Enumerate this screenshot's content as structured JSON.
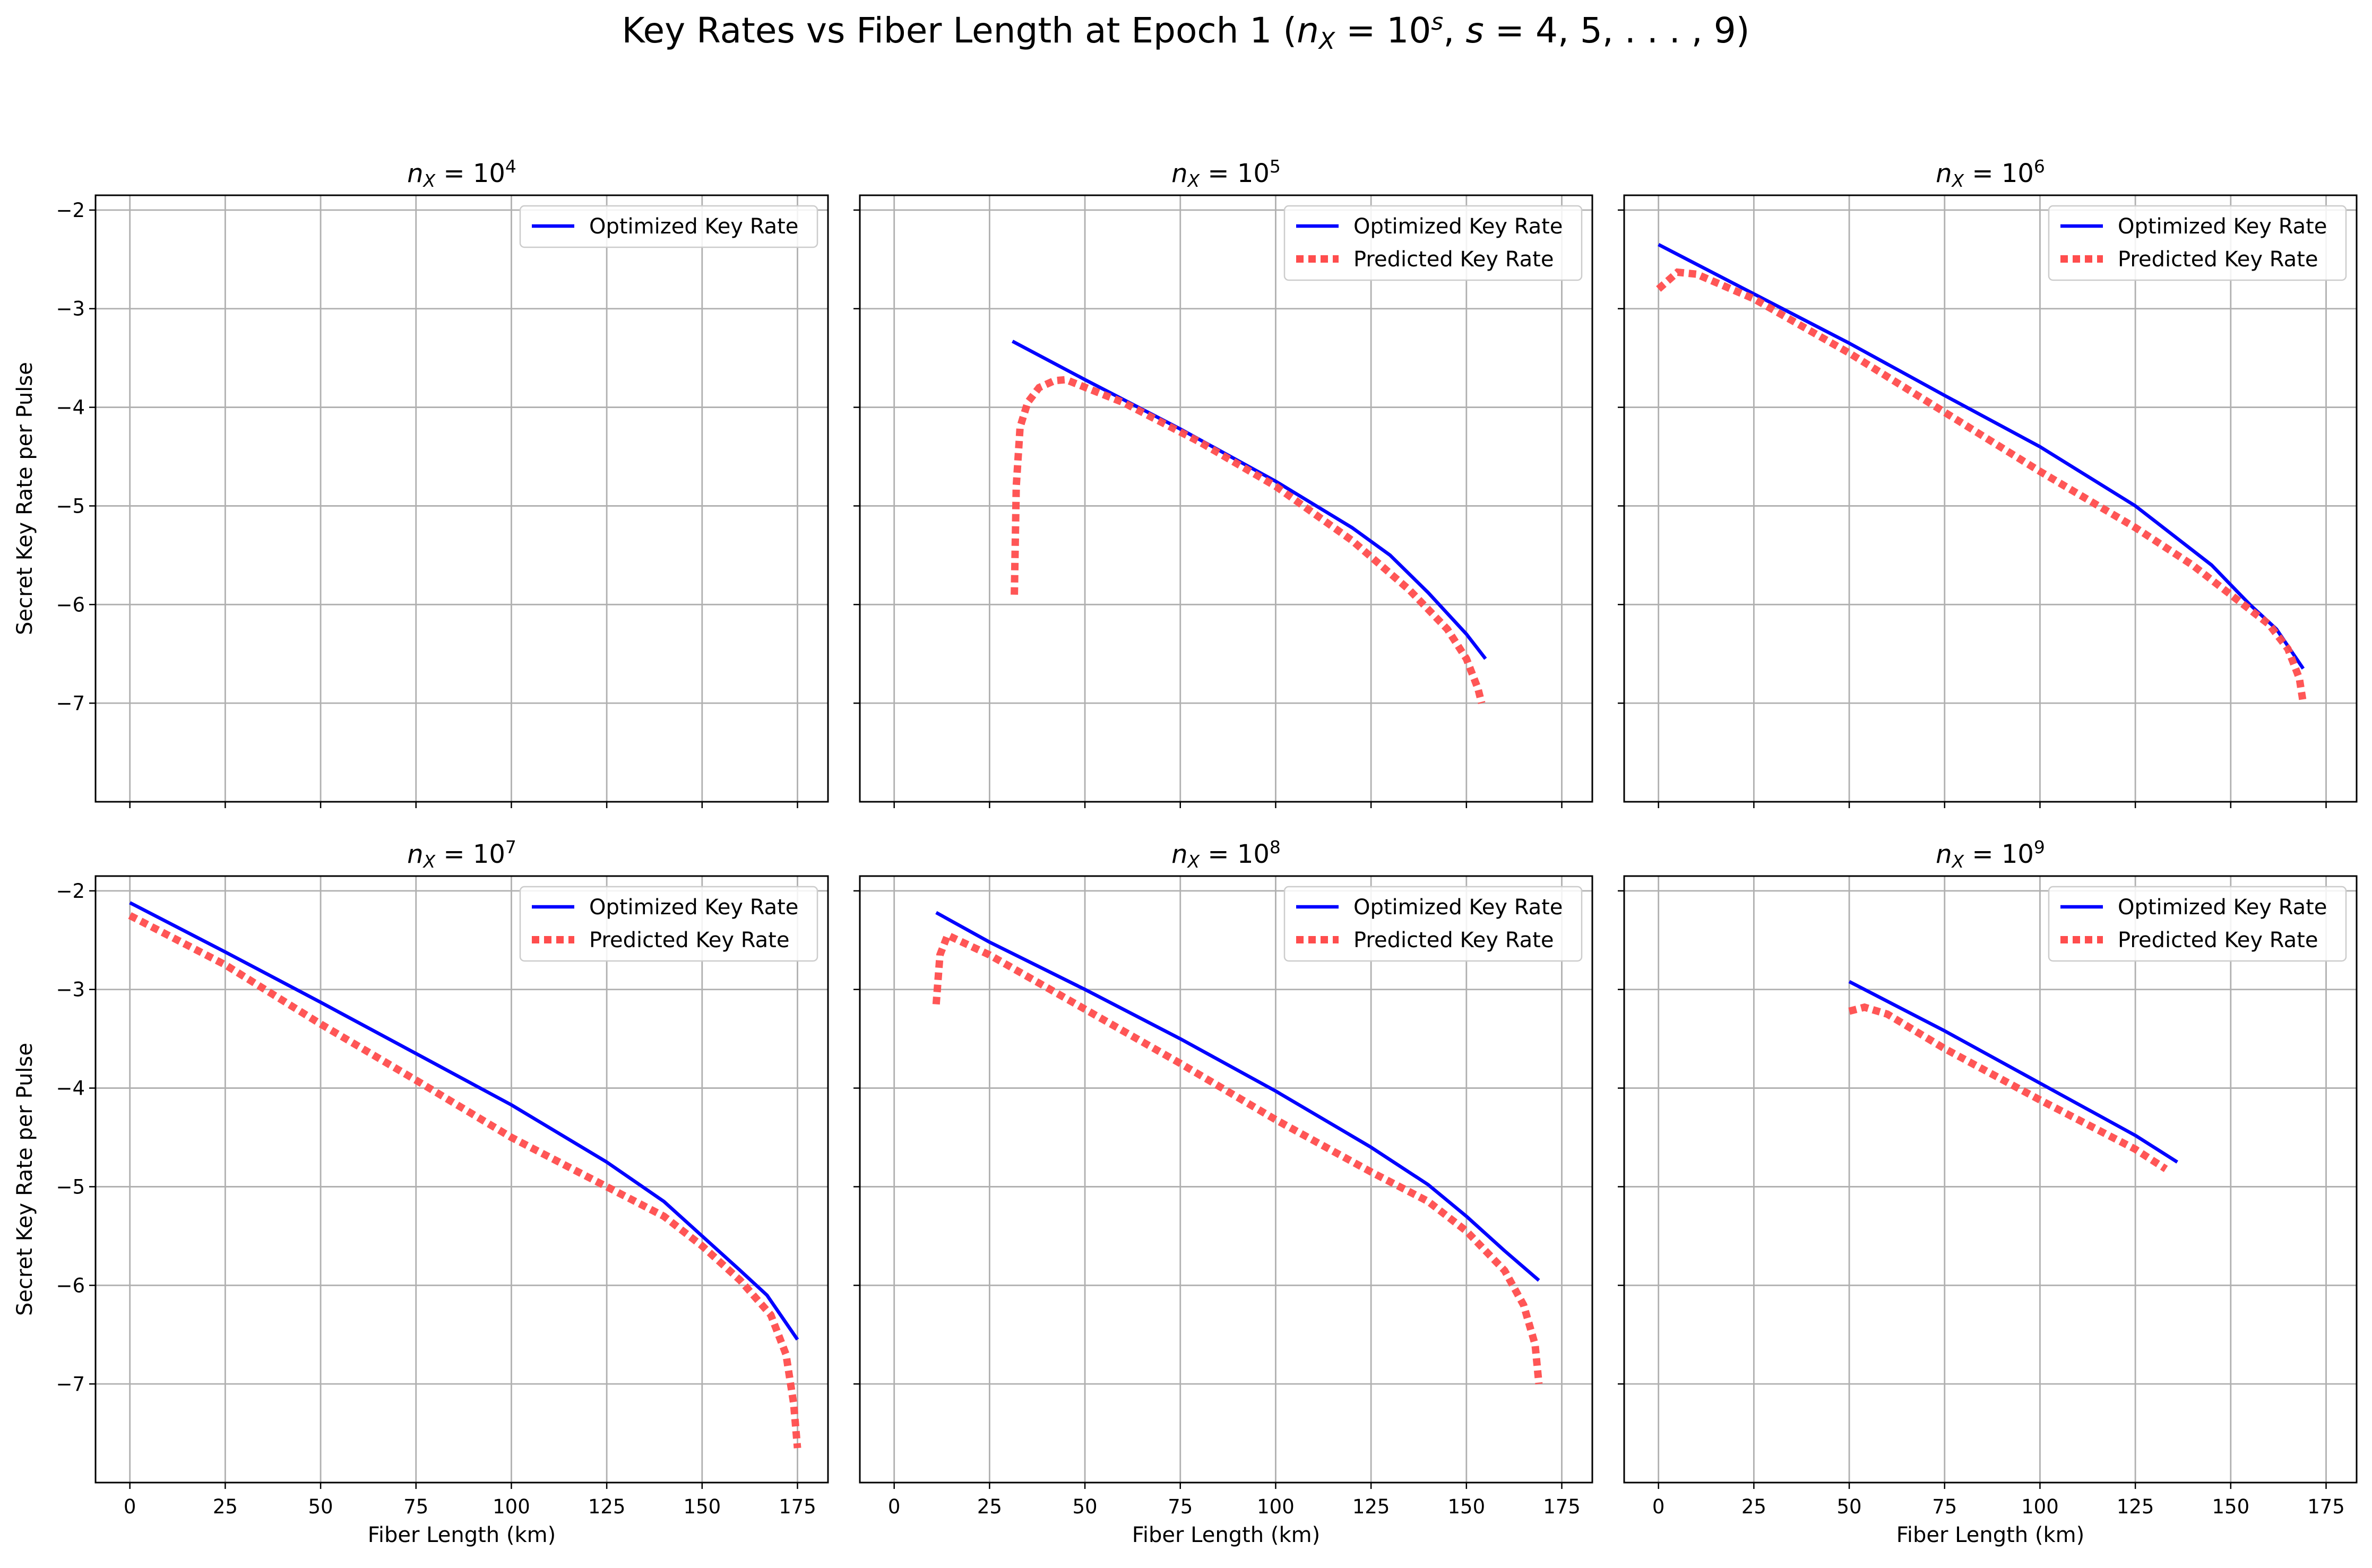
{
  "figure": {
    "title": "Key Rates vs Fiber Length at Epoch 1 (n_X = 10^s, s = 4, 5, . . . , 9)"
  },
  "colors": {
    "optimized": "#0000ff",
    "predicted": "#ff4d4d",
    "grid": "#b0b0b0",
    "frame": "#000000"
  },
  "legend_labels": {
    "optimized": "Optimized Key Rate",
    "predicted": "Predicted Key Rate"
  },
  "chart_data": [
    {
      "type": "line",
      "title": "n_X = 10^4",
      "xlabel": "",
      "ylabel": "Secret Key Rate per Pulse",
      "xlim": [
        -9,
        183
      ],
      "ylim": [
        -8.0,
        -1.85
      ],
      "xticks": [
        0,
        25,
        50,
        75,
        100,
        125,
        150,
        175
      ],
      "yticks": [
        -2,
        -3,
        -4,
        -5,
        -6,
        -7
      ],
      "show_xtick_labels": false,
      "show_ytick_labels": true,
      "grid": true,
      "legend_position": "top-right",
      "series": [
        {
          "name": "Optimized Key Rate",
          "style": "solid",
          "x": [],
          "y": []
        }
      ]
    },
    {
      "type": "line",
      "title": "n_X = 10^5",
      "xlabel": "",
      "ylabel": "",
      "xlim": [
        -9,
        183
      ],
      "ylim": [
        -8.0,
        -1.85
      ],
      "xticks": [
        0,
        25,
        50,
        75,
        100,
        125,
        150,
        175
      ],
      "yticks": [
        -2,
        -3,
        -4,
        -5,
        -6,
        -7
      ],
      "show_xtick_labels": false,
      "show_ytick_labels": false,
      "grid": true,
      "legend_position": "top-right",
      "series": [
        {
          "name": "Optimized Key Rate",
          "style": "solid",
          "x": [
            31,
            50,
            75,
            100,
            120,
            130,
            140,
            150,
            155
          ],
          "y": [
            -3.33,
            -3.72,
            -4.22,
            -4.75,
            -5.22,
            -5.5,
            -5.88,
            -6.3,
            -6.55
          ]
        },
        {
          "name": "Predicted Key Rate",
          "style": "dotted",
          "x": [
            31.5,
            32,
            33,
            35,
            38,
            42,
            45,
            60,
            80,
            100,
            120,
            135,
            145,
            150,
            153,
            154
          ],
          "y": [
            -5.9,
            -4.8,
            -4.2,
            -3.95,
            -3.8,
            -3.73,
            -3.72,
            -3.95,
            -4.35,
            -4.8,
            -5.35,
            -5.85,
            -6.25,
            -6.55,
            -6.85,
            -7.0
          ]
        }
      ]
    },
    {
      "type": "line",
      "title": "n_X = 10^6",
      "xlabel": "",
      "ylabel": "",
      "xlim": [
        -9,
        183
      ],
      "ylim": [
        -8.0,
        -1.85
      ],
      "xticks": [
        0,
        25,
        50,
        75,
        100,
        125,
        150,
        175
      ],
      "yticks": [
        -2,
        -3,
        -4,
        -5,
        -6,
        -7
      ],
      "show_xtick_labels": false,
      "show_ytick_labels": false,
      "grid": true,
      "legend_position": "top-right",
      "series": [
        {
          "name": "Optimized Key Rate",
          "style": "solid",
          "x": [
            0,
            25,
            50,
            75,
            100,
            125,
            145,
            155,
            162,
            169
          ],
          "y": [
            -2.35,
            -2.85,
            -3.35,
            -3.88,
            -4.4,
            -5.0,
            -5.6,
            -6.0,
            -6.25,
            -6.65
          ]
        },
        {
          "name": "Predicted Key Rate",
          "style": "dotted",
          "x": [
            0,
            5,
            10,
            25,
            50,
            75,
            100,
            125,
            140,
            150,
            160,
            165,
            168,
            169
          ],
          "y": [
            -2.8,
            -2.63,
            -2.65,
            -2.9,
            -3.45,
            -4.05,
            -4.65,
            -5.22,
            -5.6,
            -5.9,
            -6.2,
            -6.45,
            -6.75,
            -7.0
          ]
        }
      ]
    },
    {
      "type": "line",
      "title": "n_X = 10^7",
      "xlabel": "Fiber Length (km)",
      "ylabel": "Secret Key Rate per Pulse",
      "xlim": [
        -9,
        183
      ],
      "ylim": [
        -8.0,
        -1.85
      ],
      "xticks": [
        0,
        25,
        50,
        75,
        100,
        125,
        150,
        175
      ],
      "yticks": [
        -2,
        -3,
        -4,
        -5,
        -6,
        -7
      ],
      "show_xtick_labels": true,
      "show_ytick_labels": true,
      "grid": true,
      "legend_position": "top-right",
      "series": [
        {
          "name": "Optimized Key Rate",
          "style": "solid",
          "x": [
            0,
            25,
            50,
            75,
            100,
            125,
            140,
            150,
            160,
            167,
            175
          ],
          "y": [
            -2.12,
            -2.62,
            -3.13,
            -3.65,
            -4.17,
            -4.75,
            -5.15,
            -5.5,
            -5.85,
            -6.1,
            -6.55
          ]
        },
        {
          "name": "Predicted Key Rate",
          "style": "dotted",
          "x": [
            0,
            25,
            50,
            75,
            100,
            125,
            140,
            150,
            160,
            168,
            172,
            174,
            175
          ],
          "y": [
            -2.25,
            -2.75,
            -3.35,
            -3.92,
            -4.5,
            -5.0,
            -5.3,
            -5.6,
            -5.95,
            -6.3,
            -6.7,
            -7.2,
            -7.65
          ]
        }
      ]
    },
    {
      "type": "line",
      "title": "n_X = 10^8",
      "xlabel": "Fiber Length (km)",
      "ylabel": "",
      "xlim": [
        -9,
        183
      ],
      "ylim": [
        -8.0,
        -1.85
      ],
      "xticks": [
        0,
        25,
        50,
        75,
        100,
        125,
        150,
        175
      ],
      "yticks": [
        -2,
        -3,
        -4,
        -5,
        -6,
        -7
      ],
      "show_xtick_labels": true,
      "show_ytick_labels": false,
      "grid": true,
      "legend_position": "top-right",
      "series": [
        {
          "name": "Optimized Key Rate",
          "style": "solid",
          "x": [
            11,
            25,
            50,
            75,
            100,
            125,
            140,
            150,
            160,
            169
          ],
          "y": [
            -2.22,
            -2.52,
            -3.0,
            -3.5,
            -4.03,
            -4.6,
            -4.98,
            -5.3,
            -5.65,
            -5.95
          ]
        },
        {
          "name": "Predicted Key Rate",
          "style": "dotted",
          "x": [
            11,
            12,
            14,
            25,
            50,
            75,
            100,
            125,
            140,
            150,
            160,
            165,
            168,
            169
          ],
          "y": [
            -3.15,
            -2.65,
            -2.45,
            -2.65,
            -3.2,
            -3.75,
            -4.32,
            -4.85,
            -5.15,
            -5.45,
            -5.85,
            -6.2,
            -6.6,
            -7.0
          ]
        }
      ]
    },
    {
      "type": "line",
      "title": "n_X = 10^9",
      "xlabel": "Fiber Length (km)",
      "ylabel": "",
      "xlim": [
        -9,
        183
      ],
      "ylim": [
        -8.0,
        -1.85
      ],
      "xticks": [
        0,
        25,
        50,
        75,
        100,
        125,
        150,
        175
      ],
      "yticks": [
        -2,
        -3,
        -4,
        -5,
        -6,
        -7
      ],
      "show_xtick_labels": true,
      "show_ytick_labels": false,
      "grid": true,
      "legend_position": "top-right",
      "series": [
        {
          "name": "Optimized Key Rate",
          "style": "solid",
          "x": [
            50,
            75,
            100,
            125,
            136
          ],
          "y": [
            -2.92,
            -3.42,
            -3.95,
            -4.48,
            -4.75
          ]
        },
        {
          "name": "Predicted Key Rate",
          "style": "dotted",
          "x": [
            50,
            54,
            60,
            75,
            100,
            125,
            133
          ],
          "y": [
            -3.22,
            -3.18,
            -3.25,
            -3.6,
            -4.12,
            -4.62,
            -4.82
          ]
        }
      ]
    }
  ]
}
